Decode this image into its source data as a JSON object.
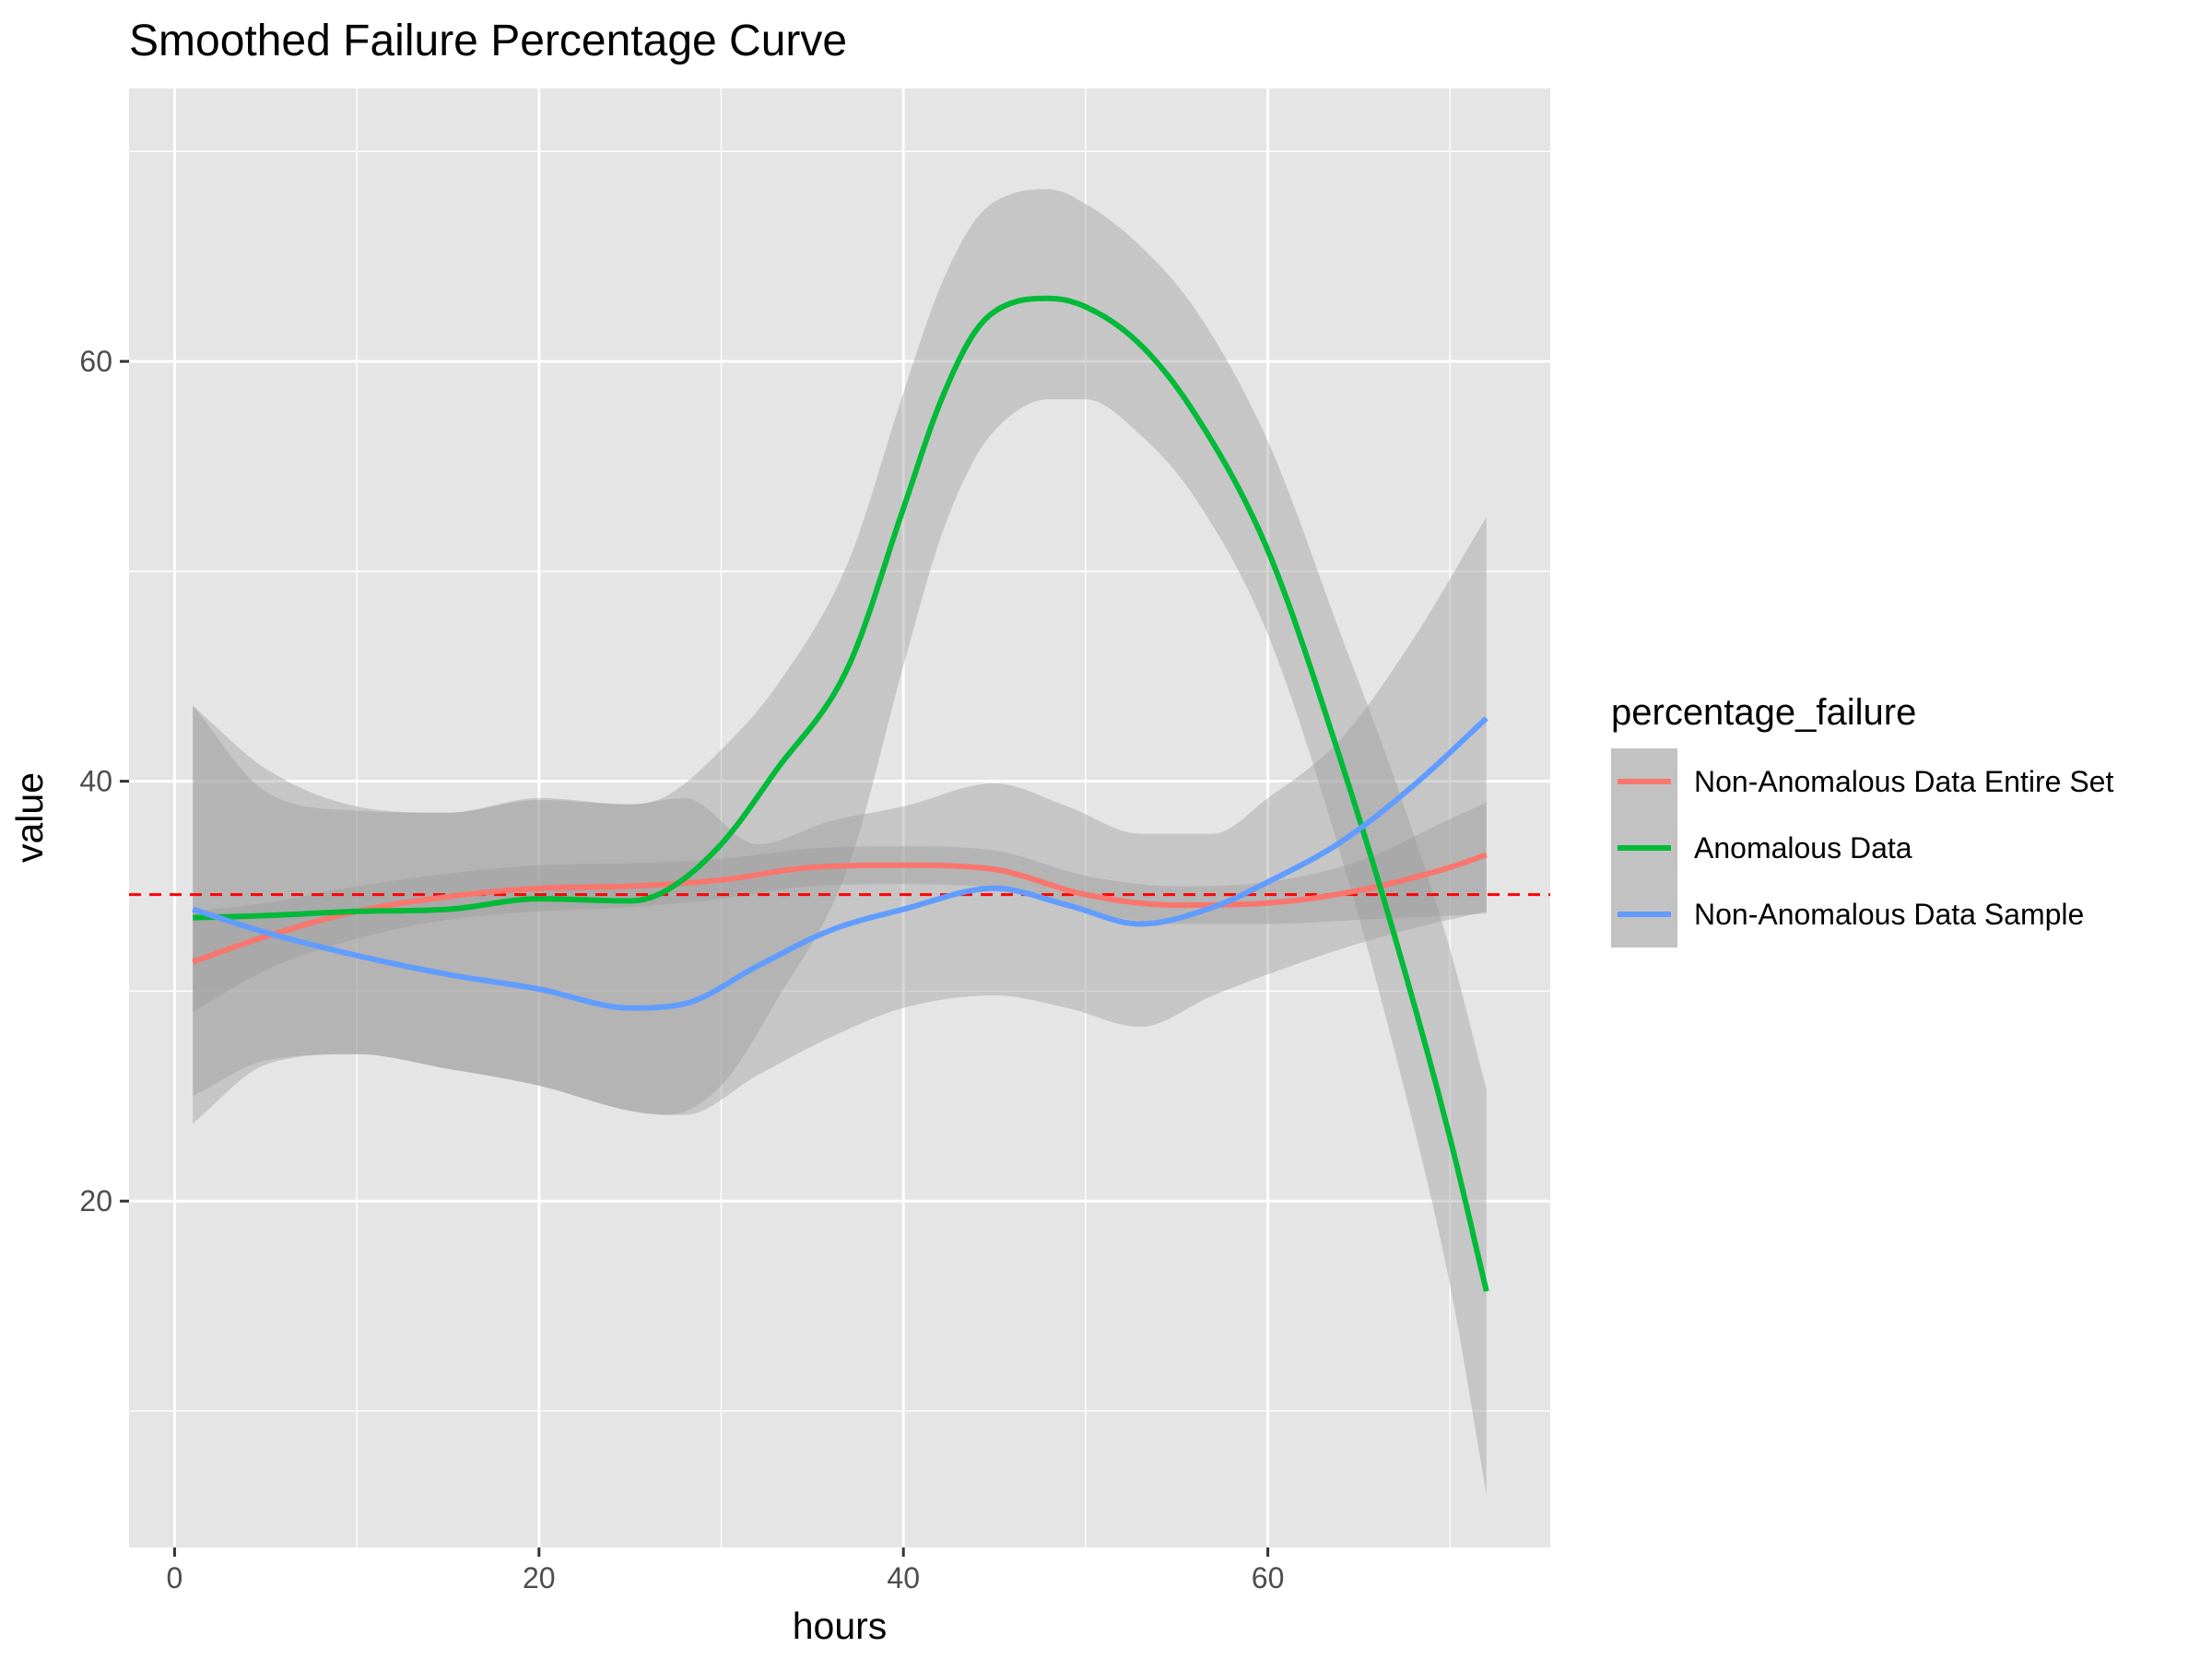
{
  "chart_data": {
    "type": "line",
    "title": "Smoothed Failure Percentage Curve",
    "xlabel": "hours",
    "ylabel": "value",
    "xlim": [
      -2.5,
      75.5
    ],
    "ylim": [
      3.5,
      73
    ],
    "x_ticks": [
      0,
      20,
      40,
      60
    ],
    "y_ticks": [
      20,
      40,
      60
    ],
    "x_minor": [
      10,
      30,
      50,
      70
    ],
    "y_minor": [
      10,
      30,
      50,
      70
    ],
    "legend": {
      "title": "percentage_failure",
      "position": "right"
    },
    "reference_line": {
      "y": 34.6,
      "color": "#ff0000",
      "style": "dashed"
    },
    "ribbon_color": "#999999",
    "series": [
      {
        "name": "Non-Anomalous Data Entire Set",
        "color": "#F8766D",
        "x": [
          1,
          5,
          10,
          15,
          20,
          25,
          30,
          35,
          40,
          45,
          50,
          55,
          60,
          65,
          70,
          72
        ],
        "y": [
          31.4,
          32.6,
          33.8,
          34.5,
          34.9,
          35.0,
          35.3,
          35.9,
          36.0,
          35.8,
          34.6,
          34.1,
          34.2,
          34.8,
          35.9,
          36.5
        ],
        "lower": [
          29.0,
          31.0,
          32.5,
          33.4,
          33.8,
          34.0,
          34.4,
          35.0,
          35.1,
          34.9,
          33.8,
          33.2,
          33.2,
          33.4,
          33.6,
          33.7
        ],
        "upper": [
          33.8,
          34.2,
          35.0,
          35.6,
          36.0,
          36.1,
          36.3,
          36.8,
          36.9,
          36.7,
          35.5,
          35.0,
          35.2,
          36.2,
          38.2,
          39.0
        ]
      },
      {
        "name": "Anomalous Data",
        "color": "#00BA38",
        "x": [
          1,
          5,
          10,
          15,
          20,
          25,
          27,
          30,
          33,
          37,
          40,
          42,
          44,
          46,
          48,
          50,
          53,
          56,
          60,
          64,
          67,
          70,
          72
        ],
        "y": [
          33.5,
          33.6,
          33.8,
          33.9,
          34.4,
          34.3,
          34.8,
          37.0,
          40.5,
          45.5,
          53.0,
          58.0,
          61.5,
          62.8,
          63.0,
          62.6,
          60.8,
          57.5,
          51.0,
          41.0,
          32.5,
          23.0,
          15.7
        ],
        "lower": [
          23.7,
          26.5,
          27.0,
          26.3,
          25.5,
          24.3,
          24.1,
          25.5,
          29.5,
          36.0,
          45.5,
          51.5,
          55.5,
          57.5,
          58.2,
          58.2,
          56.5,
          53.5,
          47.0,
          36.5,
          27.0,
          16.0,
          6.0
        ],
        "upper": [
          43.6,
          40.6,
          38.8,
          38.5,
          39.2,
          38.9,
          39.3,
          41.5,
          44.5,
          50.5,
          58.5,
          63.5,
          66.8,
          68.0,
          68.2,
          67.5,
          65.5,
          62.5,
          56.2,
          47.0,
          40.0,
          32.0,
          25.3
        ]
      },
      {
        "name": "Non-Anomalous Data Sample",
        "color": "#619CFF",
        "x": [
          1,
          5,
          10,
          15,
          20,
          25,
          28,
          32,
          36,
          40,
          45,
          49,
          53,
          57,
          60,
          64,
          68,
          72
        ],
        "y": [
          33.9,
          32.8,
          31.7,
          30.8,
          30.1,
          29.2,
          29.4,
          31.2,
          32.9,
          33.9,
          34.9,
          34.1,
          33.2,
          34.0,
          35.2,
          37.1,
          39.8,
          43.0
        ],
        "lower": [
          25.0,
          26.7,
          27.0,
          26.3,
          25.5,
          24.3,
          24.1,
          26.0,
          27.8,
          29.2,
          29.8,
          29.2,
          28.3,
          29.8,
          30.8,
          32.0,
          33.0,
          33.8
        ],
        "upper": [
          43.6,
          39.5,
          38.6,
          38.5,
          39.1,
          38.9,
          39.2,
          37.0,
          38.1,
          38.8,
          39.9,
          38.8,
          37.5,
          37.5,
          39.2,
          42.0,
          46.8,
          52.6
        ]
      }
    ]
  }
}
